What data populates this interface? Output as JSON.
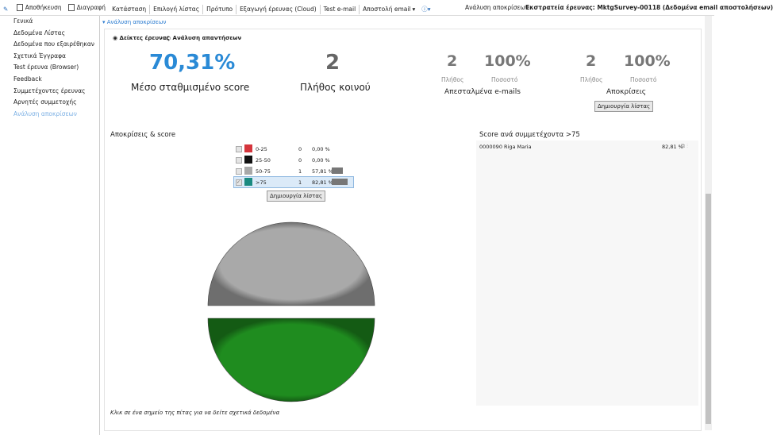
{
  "toolbar": {
    "items": [
      "Αποθήκευση",
      "Διαγραφή",
      "Κατάσταση",
      "Επιλογή λίστας",
      "Πρότυπο",
      "Εξαγωγή έρευνας (Cloud)",
      "Test e-mail",
      "Αποστολή email"
    ],
    "right_link": "Ανάλυση αποκρίσεων",
    "record_title": "Εκστρατεία έρευνας: MktgSurvey-00118 (Δεδομένα email αποστολήσεων)"
  },
  "nav": {
    "items": [
      "Γενικά",
      "Δεδομένα Λίστας",
      "Δεδομένα που εξαιρέθηκαν",
      "Σχετικά Έγγραφα",
      "Test έρευνα (Browser)",
      "Feedback",
      "Συμμετέχοντες έρευνας",
      "Αρνητές συμμετοχής",
      "Ανάλυση αποκρίσεων"
    ]
  },
  "section_title": "Ανάλυση αποκρίσεων",
  "view_options": [
    "Δείκτες έρευνας",
    "Ανάλυση απαντήσεων"
  ],
  "metrics": {
    "score": {
      "value": "70,31%",
      "label": "Μέσο σταθμισμένο score"
    },
    "audience": {
      "value": 2,
      "label": "Πλήθος κοινού"
    },
    "sent": {
      "count": 2,
      "percent": "100%",
      "count_label": "Πλήθος",
      "percent_label": "Ποσοστό",
      "label": "Απεσταλμένα e-mails"
    },
    "responses": {
      "count": 2,
      "percent": "100%",
      "count_label": "Πλήθος",
      "percent_label": "Ποσοστό",
      "label": "Αποκρίσεις",
      "button": "Δημιουργία λίστας"
    }
  },
  "responses_chart": {
    "title": "Αποκρίσεις & score",
    "rows": [
      {
        "label": "0-25",
        "count": 0,
        "percent": {
          "value": 0,
          "label": "0,00 %"
        },
        "color": "#d5353c",
        "slice_color": "#d5353c",
        "selected": false
      },
      {
        "label": "25-50",
        "count": 0,
        "percent": {
          "value": 0,
          "label": "0,00 %"
        },
        "color": "#111111",
        "slice_color": "#111111",
        "selected": false
      },
      {
        "label": "50-75",
        "count": 1,
        "percent": {
          "value": 57.81,
          "label": "57,81 %"
        },
        "color": "#a8a8a8",
        "slice_color": "#a9a9a9",
        "selected": false
      },
      {
        "label": ">75",
        "count": 1,
        "percent": {
          "value": 82.81,
          "label": "82,81 %"
        },
        "color": "#1a8a80",
        "slice_color": "#1f8c1f",
        "selected": true
      }
    ],
    "button": "Δημιουργία λίστας",
    "caption": "Κλικ σε ένα σημείο της πίτας για να δείτε σχετικά δεδομένα"
  },
  "participants": {
    "title": "Score ανά συμμετέχοντα >75",
    "rows": [
      {
        "name": "0000090 Riga Maria",
        "score": "82,81 %"
      }
    ]
  }
}
